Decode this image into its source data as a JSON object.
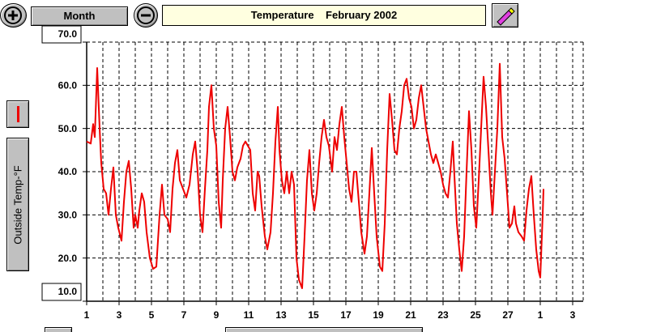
{
  "toolbar": {
    "month_button": "Month"
  },
  "chart_data": {
    "type": "line",
    "title": "Temperature    February 2002",
    "y_label": "Outside Temp-°F",
    "color": "#ee0000",
    "x": [
      1.0,
      1.25,
      1.4,
      1.5,
      1.65,
      1.8,
      1.9,
      2.05,
      2.2,
      2.35,
      2.5,
      2.65,
      2.8,
      2.95,
      3.15,
      3.3,
      3.45,
      3.6,
      3.75,
      3.9,
      4.0,
      4.15,
      4.25,
      4.4,
      4.55,
      4.7,
      4.9,
      5.1,
      5.3,
      5.5,
      5.65,
      5.8,
      6.0,
      6.15,
      6.3,
      6.45,
      6.6,
      6.75,
      6.95,
      7.15,
      7.35,
      7.55,
      7.7,
      7.85,
      8.0,
      8.15,
      8.3,
      8.45,
      8.55,
      8.7,
      8.85,
      9.0,
      9.15,
      9.3,
      9.4,
      9.55,
      9.7,
      9.85,
      10.0,
      10.15,
      10.3,
      10.5,
      10.65,
      10.8,
      10.95,
      11.1,
      11.25,
      11.4,
      11.55,
      11.65,
      11.8,
      12.0,
      12.15,
      12.35,
      12.5,
      12.65,
      12.8,
      12.9,
      13.05,
      13.2,
      13.35,
      13.5,
      13.65,
      13.8,
      13.95,
      14.1,
      14.3,
      14.45,
      14.6,
      14.75,
      14.9,
      15.05,
      15.2,
      15.35,
      15.5,
      15.65,
      15.8,
      15.95,
      16.15,
      16.3,
      16.45,
      16.6,
      16.75,
      16.9,
      17.05,
      17.2,
      17.35,
      17.5,
      17.65,
      17.8,
      17.95,
      18.15,
      18.3,
      18.45,
      18.6,
      18.75,
      18.9,
      19.1,
      19.25,
      19.4,
      19.55,
      19.7,
      19.85,
      20.0,
      20.15,
      20.3,
      20.45,
      20.6,
      20.75,
      20.9,
      21.05,
      21.2,
      21.35,
      21.5,
      21.65,
      21.8,
      21.95,
      22.1,
      22.25,
      22.4,
      22.55,
      22.7,
      22.85,
      23.0,
      23.15,
      23.3,
      23.45,
      23.6,
      23.7,
      23.85,
      24.0,
      24.15,
      24.3,
      24.45,
      24.6,
      24.75,
      24.9,
      25.05,
      25.2,
      25.35,
      25.5,
      25.65,
      25.8,
      25.95,
      26.05,
      26.2,
      26.35,
      26.5,
      26.65,
      26.8,
      26.95,
      27.1,
      27.25,
      27.4,
      27.5,
      27.65,
      27.85,
      28.0,
      28.15,
      28.3,
      28.45,
      28.6,
      28.75,
      28.9,
      29.0,
      29.15,
      29.2
    ],
    "values": [
      47,
      46.5,
      51,
      48,
      64,
      50,
      42,
      36,
      35,
      30,
      36,
      41,
      30,
      27,
      24,
      33,
      40,
      42.5,
      36,
      27,
      30,
      27,
      31,
      35,
      33,
      26,
      20,
      17.5,
      18,
      30,
      37,
      30,
      29,
      26,
      36,
      42,
      45,
      38,
      36,
      34,
      37,
      44,
      47,
      40,
      30,
      26,
      36,
      45,
      55,
      60,
      50,
      46,
      33,
      27,
      38,
      50,
      55,
      48,
      40,
      38,
      41,
      43,
      46,
      47,
      46,
      45,
      35,
      31,
      40,
      39,
      32,
      25,
      22,
      26,
      35,
      47,
      55,
      45,
      38,
      35,
      40,
      35,
      40,
      37,
      20,
      15,
      13,
      25,
      38,
      45,
      35,
      31,
      35,
      42,
      48,
      52,
      48,
      46,
      40,
      48,
      45,
      51,
      55,
      48,
      42,
      36,
      33,
      40,
      40,
      33,
      26,
      21,
      25,
      35,
      45.5,
      35,
      25,
      18,
      17,
      28,
      45,
      58,
      52,
      45,
      44,
      50,
      54,
      60,
      61.5,
      57,
      55,
      50,
      52,
      57,
      60,
      55,
      50,
      47,
      44,
      42,
      44,
      42,
      40,
      37,
      35,
      34,
      40,
      47,
      39,
      28,
      22,
      17,
      25,
      40,
      54,
      45,
      32,
      27,
      38,
      50,
      62,
      55,
      45,
      35,
      30,
      40,
      50,
      65,
      48,
      43,
      35,
      27,
      28,
      32,
      28,
      26,
      25,
      24,
      31,
      36,
      39,
      30,
      22,
      17,
      15.5,
      30,
      36
    ],
    "xlim": [
      1,
      31.65
    ],
    "ylim": [
      10,
      70
    ],
    "xticks": [
      1,
      3,
      5,
      7,
      9,
      11,
      13,
      15,
      17,
      19,
      21,
      23,
      25,
      27,
      {
        "value": 29,
        "label": "1"
      },
      {
        "value": 31,
        "label": "3"
      }
    ],
    "xminor_ticks": [
      2,
      4,
      6,
      8,
      10,
      12,
      14,
      16,
      18,
      20,
      22,
      24,
      26,
      28,
      30
    ],
    "yticks": [
      {
        "value": 10,
        "label": "10.0"
      },
      {
        "value": 20,
        "label": "20.0"
      },
      {
        "value": 30,
        "label": "30.0"
      },
      {
        "value": 40,
        "label": "40.0"
      },
      {
        "value": 50,
        "label": "50.0"
      },
      {
        "value": 60,
        "label": "60.0"
      },
      {
        "value": 70,
        "label": "70.0"
      }
    ],
    "grid": true
  }
}
